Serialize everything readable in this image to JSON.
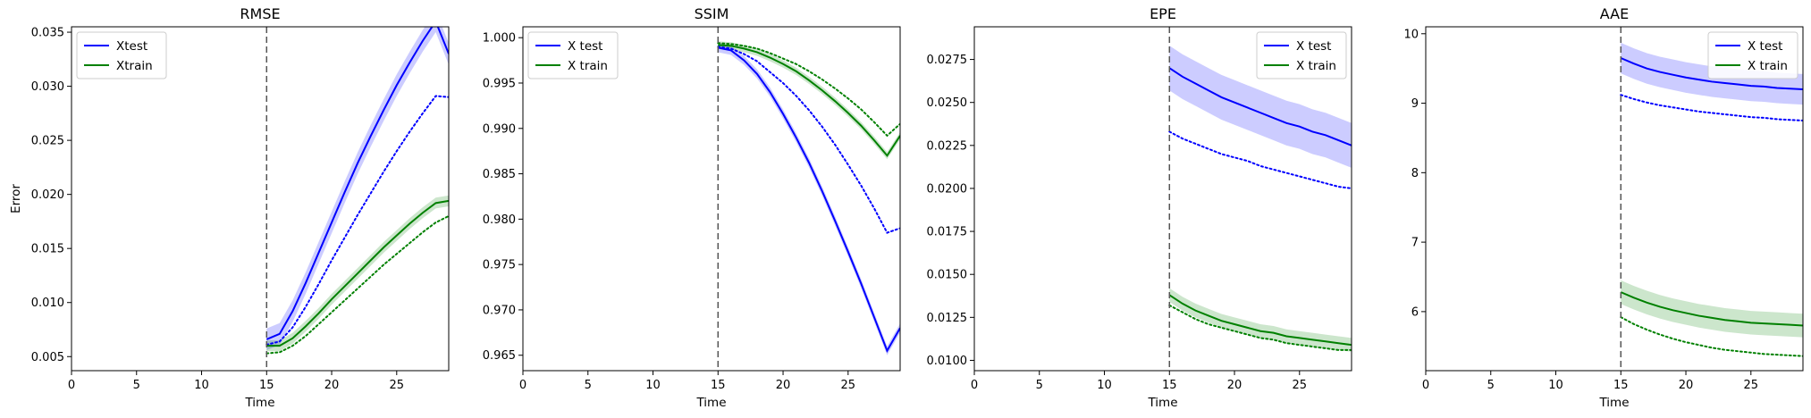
{
  "chart_data": [
    {
      "type": "line",
      "title": "RMSE",
      "xlabel": "Time",
      "ylabel": "Error",
      "xlim": [
        0,
        29
      ],
      "ylim": [
        0.0037,
        0.0355
      ],
      "xticks": [
        0,
        5,
        10,
        15,
        20,
        25
      ],
      "xtick_labels": [
        "0",
        "5",
        "10",
        "15",
        "20",
        "25"
      ],
      "yticks": [
        0.005,
        0.01,
        0.015,
        0.02,
        0.025,
        0.03,
        0.035
      ],
      "ytick_labels": [
        "0.005",
        "0.010",
        "0.015",
        "0.020",
        "0.025",
        "0.030",
        "0.035"
      ],
      "vline_x": 15,
      "legend_position": "top-left",
      "x": [
        15,
        16,
        17,
        18,
        19,
        20,
        21,
        22,
        23,
        24,
        25,
        26,
        27,
        28,
        29
      ],
      "series": [
        {
          "name": "Xtest",
          "color": "#0000ff",
          "values": [
            0.0066,
            0.0071,
            0.0092,
            0.0118,
            0.0146,
            0.0174,
            0.0202,
            0.0229,
            0.0254,
            0.0278,
            0.0301,
            0.0322,
            0.0342,
            0.036,
            0.033
          ],
          "band": 0.001,
          "dotted": [
            0.0061,
            0.0064,
            0.0077,
            0.0096,
            0.0117,
            0.0139,
            0.016,
            0.0181,
            0.0201,
            0.0221,
            0.024,
            0.0258,
            0.0275,
            0.0291,
            0.029
          ]
        },
        {
          "name": "Xtrain",
          "color": "#008000",
          "values": [
            0.006,
            0.006,
            0.0067,
            0.0078,
            0.009,
            0.0103,
            0.0115,
            0.0127,
            0.0139,
            0.0151,
            0.0162,
            0.0173,
            0.0183,
            0.0192,
            0.0194
          ],
          "band": 0.0005,
          "dotted": [
            0.0053,
            0.0054,
            0.006,
            0.0069,
            0.008,
            0.0091,
            0.0102,
            0.0113,
            0.0124,
            0.0135,
            0.0145,
            0.0155,
            0.0165,
            0.0174,
            0.018
          ]
        }
      ]
    },
    {
      "type": "line",
      "title": "SSIM",
      "xlabel": "Time",
      "ylabel": "",
      "xlim": [
        0,
        29
      ],
      "ylim": [
        0.9633,
        1.0012
      ],
      "xticks": [
        0,
        5,
        10,
        15,
        20,
        25
      ],
      "xtick_labels": [
        "0",
        "5",
        "10",
        "15",
        "20",
        "25"
      ],
      "yticks": [
        0.965,
        0.97,
        0.975,
        0.98,
        0.985,
        0.99,
        0.995,
        1.0
      ],
      "ytick_labels": [
        "0.965",
        "0.970",
        "0.975",
        "0.980",
        "0.985",
        "0.990",
        "0.995",
        "1.000"
      ],
      "vline_x": 15,
      "legend_position": "top-left",
      "x": [
        15,
        16,
        17,
        18,
        19,
        20,
        21,
        22,
        23,
        24,
        25,
        26,
        27,
        28,
        29
      ],
      "series": [
        {
          "name": "X test",
          "color": "#0000ff",
          "values": [
            0.9989,
            0.9986,
            0.9975,
            0.996,
            0.994,
            0.9916,
            0.989,
            0.9862,
            0.9831,
            0.9798,
            0.9764,
            0.9729,
            0.9692,
            0.9655,
            0.968
          ],
          "band": 0.0005,
          "dotted": [
            0.999,
            0.9988,
            0.9982,
            0.9974,
            0.9962,
            0.995,
            0.9936,
            0.992,
            0.9902,
            0.9882,
            0.986,
            0.9837,
            0.9812,
            0.9785,
            0.979
          ]
        },
        {
          "name": "X train",
          "color": "#008000",
          "values": [
            0.9992,
            0.9991,
            0.9988,
            0.9984,
            0.9978,
            0.9971,
            0.9963,
            0.9953,
            0.9942,
            0.993,
            0.9917,
            0.9903,
            0.9887,
            0.987,
            0.9892
          ],
          "band": 0.0004,
          "dotted": [
            0.9994,
            0.9993,
            0.9991,
            0.9988,
            0.9983,
            0.9977,
            0.9971,
            0.9963,
            0.9954,
            0.9944,
            0.9933,
            0.9921,
            0.9907,
            0.9892,
            0.9905
          ]
        }
      ]
    },
    {
      "type": "line",
      "title": "EPE",
      "xlabel": "Time",
      "ylabel": "",
      "xlim": [
        0,
        29
      ],
      "ylim": [
        0.0094,
        0.0294
      ],
      "xticks": [
        0,
        5,
        10,
        15,
        20,
        25
      ],
      "xtick_labels": [
        "0",
        "5",
        "10",
        "15",
        "20",
        "25"
      ],
      "yticks": [
        0.01,
        0.0125,
        0.015,
        0.0175,
        0.02,
        0.0225,
        0.025,
        0.0275
      ],
      "ytick_labels": [
        "0.0100",
        "0.0125",
        "0.0150",
        "0.0175",
        "0.0200",
        "0.0225",
        "0.0250",
        "0.0275"
      ],
      "vline_x": 15,
      "legend_position": "top-right",
      "x": [
        15,
        16,
        17,
        18,
        19,
        20,
        21,
        22,
        23,
        24,
        25,
        26,
        27,
        28,
        29
      ],
      "series": [
        {
          "name": "X test",
          "color": "#0000ff",
          "values": [
            0.027,
            0.0265,
            0.0261,
            0.0257,
            0.0253,
            0.025,
            0.0247,
            0.0244,
            0.0241,
            0.0238,
            0.0236,
            0.0233,
            0.0231,
            0.0228,
            0.0225
          ],
          "band": 0.0013,
          "dotted": [
            0.0233,
            0.0229,
            0.0226,
            0.0223,
            0.022,
            0.0218,
            0.0216,
            0.0213,
            0.0211,
            0.0209,
            0.0207,
            0.0205,
            0.0203,
            0.0201,
            0.02
          ]
        },
        {
          "name": "X train",
          "color": "#008000",
          "values": [
            0.0138,
            0.0133,
            0.0129,
            0.0126,
            0.0123,
            0.0121,
            0.0119,
            0.0117,
            0.0116,
            0.0114,
            0.0113,
            0.0112,
            0.0111,
            0.011,
            0.0109
          ],
          "band": 0.0004,
          "dotted": [
            0.0132,
            0.0128,
            0.0124,
            0.0121,
            0.0119,
            0.0117,
            0.0115,
            0.0113,
            0.0112,
            0.011,
            0.0109,
            0.0108,
            0.0107,
            0.0106,
            0.0106
          ]
        }
      ]
    },
    {
      "type": "line",
      "title": "AAE",
      "xlabel": "Time",
      "ylabel": "",
      "xlim": [
        0,
        29
      ],
      "ylim": [
        5.15,
        10.1
      ],
      "xticks": [
        0,
        5,
        10,
        15,
        20,
        25
      ],
      "xtick_labels": [
        "0",
        "5",
        "10",
        "15",
        "20",
        "25"
      ],
      "yticks": [
        6,
        7,
        8,
        9,
        10
      ],
      "ytick_labels": [
        "6",
        "7",
        "8",
        "9",
        "10"
      ],
      "vline_x": 15,
      "legend_position": "top-right",
      "x": [
        15,
        16,
        17,
        18,
        19,
        20,
        21,
        22,
        23,
        24,
        25,
        26,
        27,
        28,
        29
      ],
      "series": [
        {
          "name": "X test",
          "color": "#0000ff",
          "values": [
            9.65,
            9.57,
            9.5,
            9.45,
            9.41,
            9.37,
            9.34,
            9.31,
            9.29,
            9.27,
            9.25,
            9.24,
            9.22,
            9.21,
            9.2
          ],
          "band": 0.22,
          "dotted": [
            9.12,
            9.06,
            9.01,
            8.97,
            8.94,
            8.91,
            8.88,
            8.86,
            8.84,
            8.82,
            8.8,
            8.79,
            8.77,
            8.76,
            8.75
          ]
        },
        {
          "name": "X train",
          "color": "#008000",
          "values": [
            6.28,
            6.2,
            6.13,
            6.07,
            6.02,
            5.98,
            5.94,
            5.91,
            5.88,
            5.86,
            5.84,
            5.83,
            5.82,
            5.81,
            5.8
          ],
          "band": 0.17,
          "dotted": [
            5.92,
            5.82,
            5.74,
            5.67,
            5.61,
            5.56,
            5.52,
            5.48,
            5.45,
            5.43,
            5.41,
            5.39,
            5.38,
            5.37,
            5.36
          ]
        }
      ]
    }
  ]
}
